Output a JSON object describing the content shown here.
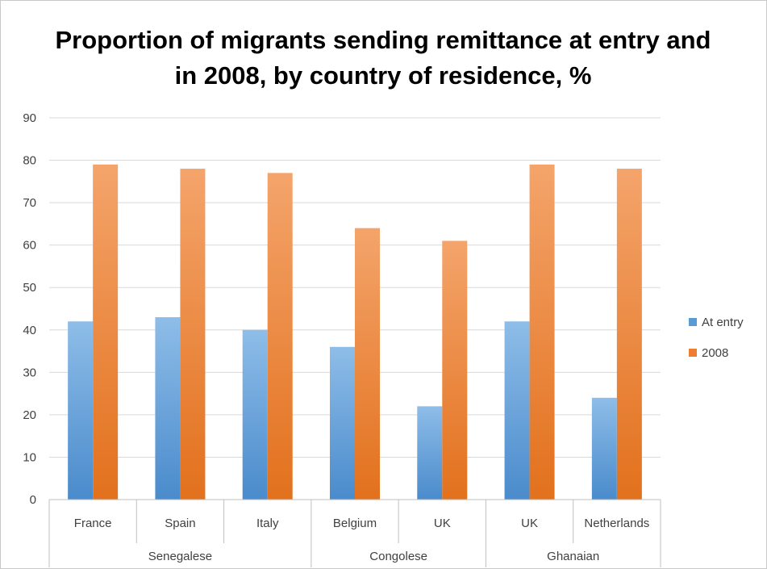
{
  "chart_data": {
    "type": "bar",
    "title": "Proportion of migrants sending remittance at entry and in 2008, by country of residence, %",
    "categories": [
      "France",
      "Spain",
      "Italy",
      "Belgium",
      "UK",
      "UK",
      "Netherlands"
    ],
    "groups": [
      {
        "label": "Senegalese",
        "span": 3
      },
      {
        "label": "Congolese",
        "span": 2
      },
      {
        "label": "Ghanaian",
        "span": 2
      }
    ],
    "series": [
      {
        "name": "At entry",
        "values": [
          42,
          43,
          40,
          36,
          22,
          42,
          24
        ],
        "color": "#5b9bd5"
      },
      {
        "name": "2008",
        "values": [
          79,
          78,
          77,
          64,
          61,
          79,
          78
        ],
        "color": "#ed7d31"
      }
    ],
    "xlabel": "",
    "ylabel": "",
    "ylim": [
      0,
      90
    ],
    "yticks": [
      0,
      10,
      20,
      30,
      40,
      50,
      60,
      70,
      80,
      90
    ],
    "grid": true,
    "legend_position": "right"
  }
}
